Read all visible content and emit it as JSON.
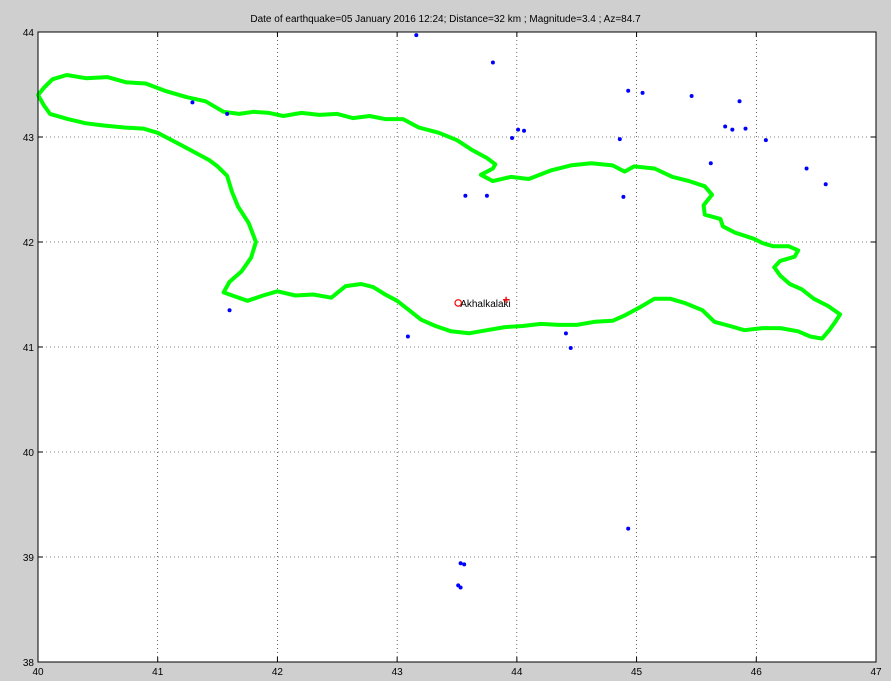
{
  "chart_data": {
    "type": "scatter",
    "title": "Date of earthquake=05 January 2016 12:24; Distance=32 km ; Magnitude=3.4 ; Az=84.7",
    "xlabel": "",
    "ylabel": "",
    "xlim": [
      40,
      47
    ],
    "ylim": [
      38,
      44
    ],
    "grid": true,
    "x_ticks": [
      "40",
      "41",
      "42",
      "43",
      "44",
      "45",
      "46",
      "47"
    ],
    "y_ticks": [
      "38",
      "39",
      "40",
      "41",
      "42",
      "43",
      "44"
    ],
    "colors": {
      "background": "#cfcfcf",
      "axes": "#ffffff",
      "border": "#00ff00",
      "events": "#0000ff",
      "station": "#ff0000",
      "grid": "#000000"
    },
    "station": {
      "name": "Akhalkalaki",
      "lon": 43.51,
      "lat": 41.42
    },
    "epicenter": {
      "lon": 43.91,
      "lat": 41.45
    },
    "events": [
      {
        "lon": 43.16,
        "lat": 43.97
      },
      {
        "lon": 43.8,
        "lat": 43.71
      },
      {
        "lon": 41.29,
        "lat": 43.33
      },
      {
        "lon": 41.58,
        "lat": 43.22
      },
      {
        "lon": 43.96,
        "lat": 42.99
      },
      {
        "lon": 44.01,
        "lat": 43.07
      },
      {
        "lon": 44.06,
        "lat": 43.06
      },
      {
        "lon": 43.57,
        "lat": 42.44
      },
      {
        "lon": 43.75,
        "lat": 42.44
      },
      {
        "lon": 44.86,
        "lat": 42.98
      },
      {
        "lon": 44.89,
        "lat": 42.43
      },
      {
        "lon": 44.93,
        "lat": 43.44
      },
      {
        "lon": 45.05,
        "lat": 43.42
      },
      {
        "lon": 45.46,
        "lat": 43.39
      },
      {
        "lon": 45.62,
        "lat": 42.75
      },
      {
        "lon": 45.74,
        "lat": 43.1
      },
      {
        "lon": 45.8,
        "lat": 43.07
      },
      {
        "lon": 45.86,
        "lat": 43.34
      },
      {
        "lon": 45.91,
        "lat": 43.08
      },
      {
        "lon": 46.08,
        "lat": 42.97
      },
      {
        "lon": 46.42,
        "lat": 42.7
      },
      {
        "lon": 46.58,
        "lat": 42.55
      },
      {
        "lon": 41.6,
        "lat": 41.35
      },
      {
        "lon": 43.09,
        "lat": 41.1
      },
      {
        "lon": 44.41,
        "lat": 41.13
      },
      {
        "lon": 44.45,
        "lat": 40.99
      },
      {
        "lon": 44.93,
        "lat": 39.27
      },
      {
        "lon": 43.53,
        "lat": 38.94
      },
      {
        "lon": 43.56,
        "lat": 38.93
      },
      {
        "lon": 43.51,
        "lat": 38.73
      },
      {
        "lon": 43.53,
        "lat": 38.71
      }
    ],
    "border": [
      [
        40.0,
        43.4
      ],
      [
        40.05,
        43.47
      ],
      [
        40.12,
        43.55
      ],
      [
        40.24,
        43.59
      ],
      [
        40.4,
        43.56
      ],
      [
        40.58,
        43.57
      ],
      [
        40.74,
        43.52
      ],
      [
        40.9,
        43.51
      ],
      [
        41.06,
        43.44
      ],
      [
        41.24,
        43.38
      ],
      [
        41.4,
        43.34
      ],
      [
        41.55,
        43.24
      ],
      [
        41.68,
        43.22
      ],
      [
        41.8,
        43.24
      ],
      [
        41.93,
        43.23
      ],
      [
        42.05,
        43.2
      ],
      [
        42.2,
        43.23
      ],
      [
        42.35,
        43.21
      ],
      [
        42.5,
        43.22
      ],
      [
        42.63,
        43.18
      ],
      [
        42.77,
        43.2
      ],
      [
        42.9,
        43.17
      ],
      [
        43.05,
        43.17
      ],
      [
        43.18,
        43.09
      ],
      [
        43.35,
        43.04
      ],
      [
        43.5,
        42.97
      ],
      [
        43.62,
        42.88
      ],
      [
        43.75,
        42.8
      ],
      [
        43.82,
        42.74
      ],
      [
        43.8,
        42.7
      ],
      [
        43.7,
        42.64
      ],
      [
        43.8,
        42.58
      ],
      [
        43.95,
        42.62
      ],
      [
        44.1,
        42.6
      ],
      [
        44.28,
        42.68
      ],
      [
        44.45,
        42.73
      ],
      [
        44.62,
        42.75
      ],
      [
        44.8,
        42.73
      ],
      [
        44.9,
        42.67
      ],
      [
        44.98,
        42.72
      ],
      [
        45.15,
        42.7
      ],
      [
        45.3,
        42.62
      ],
      [
        45.44,
        42.58
      ],
      [
        45.57,
        42.53
      ],
      [
        45.63,
        42.45
      ],
      [
        45.56,
        42.35
      ],
      [
        45.57,
        42.26
      ],
      [
        45.7,
        42.22
      ],
      [
        45.72,
        42.15
      ],
      [
        45.82,
        42.09
      ],
      [
        45.98,
        42.03
      ],
      [
        46.05,
        41.99
      ],
      [
        46.14,
        41.96
      ],
      [
        46.27,
        41.96
      ],
      [
        46.35,
        41.92
      ],
      [
        46.32,
        41.86
      ],
      [
        46.2,
        41.82
      ],
      [
        46.15,
        41.76
      ],
      [
        46.2,
        41.68
      ],
      [
        46.28,
        41.6
      ],
      [
        46.38,
        41.55
      ],
      [
        46.48,
        41.46
      ],
      [
        46.6,
        41.39
      ],
      [
        46.7,
        41.31
      ],
      [
        46.66,
        41.24
      ],
      [
        46.61,
        41.16
      ],
      [
        46.55,
        41.08
      ],
      [
        46.45,
        41.1
      ],
      [
        46.35,
        41.15
      ],
      [
        46.2,
        41.18
      ],
      [
        46.05,
        41.18
      ],
      [
        45.9,
        41.16
      ],
      [
        45.78,
        41.2
      ],
      [
        45.65,
        41.24
      ],
      [
        45.55,
        41.35
      ],
      [
        45.4,
        41.42
      ],
      [
        45.28,
        41.46
      ],
      [
        45.15,
        41.46
      ],
      [
        45.03,
        41.38
      ],
      [
        44.9,
        41.3
      ],
      [
        44.8,
        41.25
      ],
      [
        44.65,
        41.24
      ],
      [
        44.5,
        41.21
      ],
      [
        44.35,
        41.21
      ],
      [
        44.2,
        41.22
      ],
      [
        44.05,
        41.2
      ],
      [
        43.9,
        41.19
      ],
      [
        43.75,
        41.16
      ],
      [
        43.6,
        41.13
      ],
      [
        43.45,
        41.15
      ],
      [
        43.32,
        41.2
      ],
      [
        43.2,
        41.26
      ],
      [
        43.1,
        41.35
      ],
      [
        43.0,
        41.44
      ],
      [
        42.9,
        41.5
      ],
      [
        42.8,
        41.57
      ],
      [
        42.7,
        41.6
      ],
      [
        42.57,
        41.58
      ],
      [
        42.45,
        41.47
      ],
      [
        42.3,
        41.5
      ],
      [
        42.15,
        41.49
      ],
      [
        42.0,
        41.53
      ],
      [
        41.88,
        41.49
      ],
      [
        41.75,
        41.44
      ],
      [
        41.65,
        41.48
      ],
      [
        41.55,
        41.52
      ],
      [
        41.6,
        41.62
      ],
      [
        41.7,
        41.72
      ],
      [
        41.78,
        41.85
      ],
      [
        41.82,
        42.0
      ],
      [
        41.76,
        42.18
      ],
      [
        41.67,
        42.34
      ],
      [
        41.62,
        42.48
      ],
      [
        41.58,
        42.63
      ],
      [
        41.5,
        42.72
      ],
      [
        41.43,
        42.78
      ],
      [
        41.3,
        42.86
      ],
      [
        41.2,
        42.92
      ],
      [
        41.1,
        42.98
      ],
      [
        41.0,
        43.04
      ],
      [
        40.88,
        43.08
      ],
      [
        40.72,
        43.09
      ],
      [
        40.55,
        43.11
      ],
      [
        40.4,
        43.13
      ],
      [
        40.25,
        43.17
      ],
      [
        40.1,
        43.22
      ],
      [
        40.05,
        43.3
      ],
      [
        40.0,
        43.4
      ]
    ]
  }
}
